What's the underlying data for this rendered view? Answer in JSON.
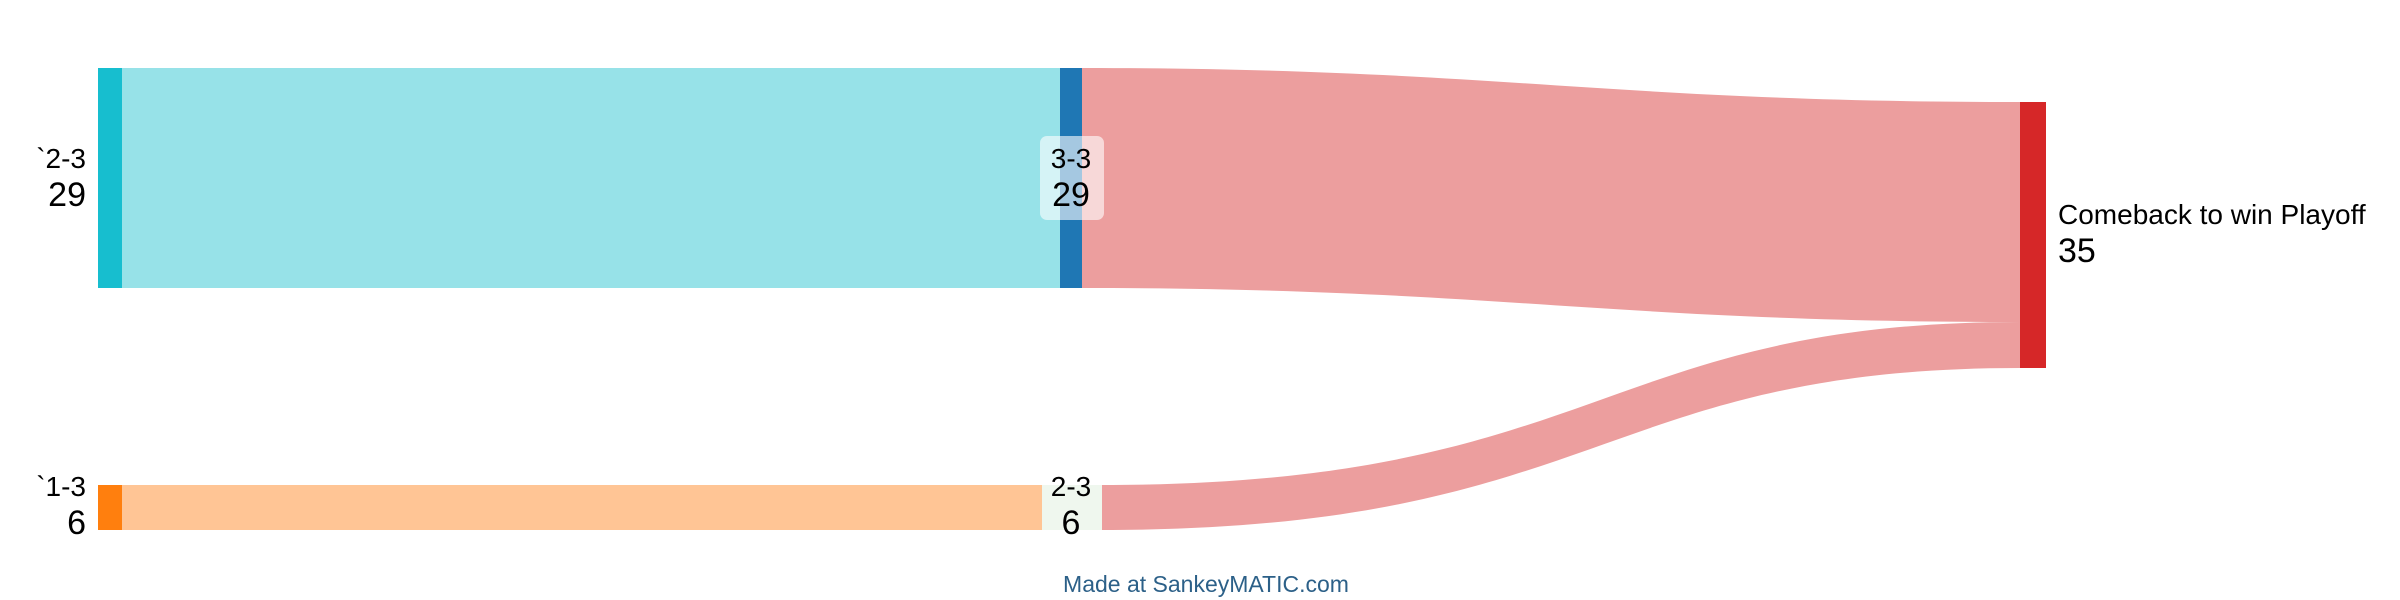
{
  "diagram": {
    "type": "sankey",
    "nodes": [
      {
        "id": "n1",
        "name": "`2-3",
        "value": 29,
        "color": "#17becf"
      },
      {
        "id": "n2",
        "name": "3-3",
        "value": 29,
        "color": "#1f77b4"
      },
      {
        "id": "n3",
        "name": "`1-3",
        "value": 6,
        "color": "#ff7f0e"
      },
      {
        "id": "n4",
        "name": "2-3",
        "value": 6,
        "color": "#d8ebd4"
      },
      {
        "id": "n5",
        "name": "Comeback to win Playoff",
        "value": 35,
        "color": "#d62728"
      }
    ],
    "flows": [
      {
        "from": "`2-3",
        "to": "3-3",
        "value": 29,
        "color": "#97e2e8"
      },
      {
        "from": "3-3",
        "to": "Comeback to win Playoff",
        "value": 29,
        "color": "#ec9e9e"
      },
      {
        "from": "`1-3",
        "to": "2-3",
        "value": 6,
        "color": "#ffc595"
      },
      {
        "from": "2-3",
        "to": "Comeback to win Playoff",
        "value": 6,
        "color": "#ec9e9e"
      }
    ]
  },
  "credit": "Made at SankeyMATIC.com"
}
